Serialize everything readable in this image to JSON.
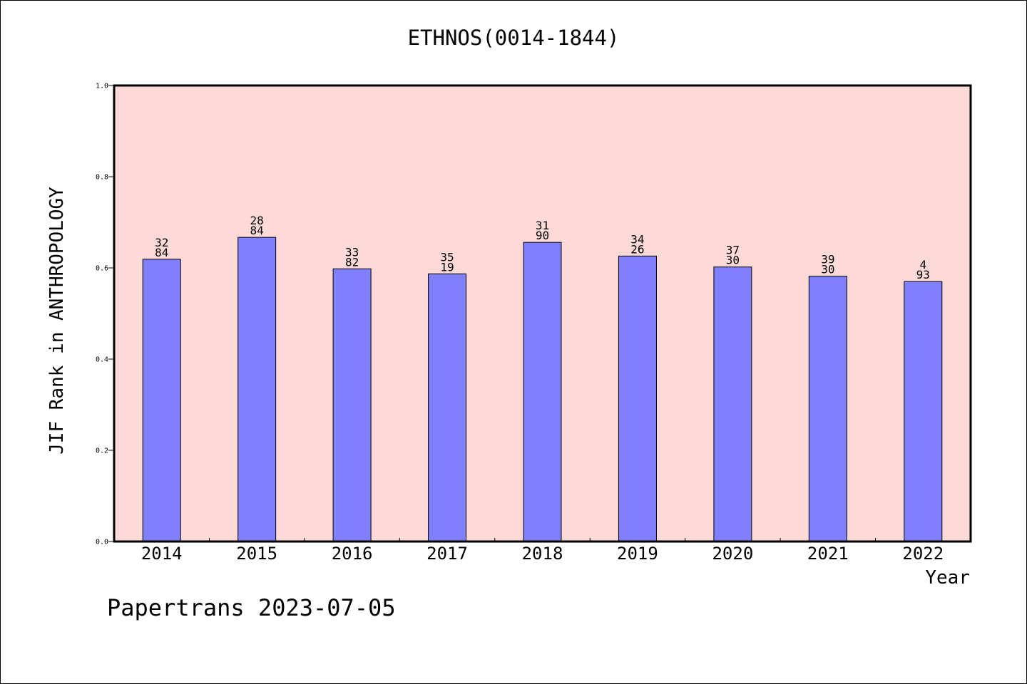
{
  "chart_data": {
    "type": "bar",
    "title": "ETHNOS(0014-1844)",
    "ylabel": "JIF Rank in ANTHROPOLOGY",
    "xlabel": "Year",
    "categories": [
      "2014",
      "2015",
      "2016",
      "2017",
      "2018",
      "2019",
      "2020",
      "2021",
      "2022"
    ],
    "values": [
      0.619,
      0.667,
      0.598,
      0.587,
      0.656,
      0.626,
      0.602,
      0.582,
      0.57
    ],
    "bar_labels": [
      [
        "32",
        "84"
      ],
      [
        "28",
        "84"
      ],
      [
        "33",
        "82"
      ],
      [
        "35",
        "19"
      ],
      [
        "31",
        "90"
      ],
      [
        "34",
        "26"
      ],
      [
        "37",
        "30"
      ],
      [
        "39",
        "30"
      ],
      [
        "4",
        "93"
      ]
    ],
    "ylim": [
      0,
      1.0
    ],
    "yticks": [
      "0.0",
      "0.2",
      "0.4",
      "0.6",
      "0.8",
      "1.0"
    ],
    "grid": false,
    "colors": {
      "bar": "#8080ff",
      "plot_background": "#fddad7",
      "bar_edge": "#000000"
    }
  },
  "footer": "Papertrans 2023-07-05"
}
